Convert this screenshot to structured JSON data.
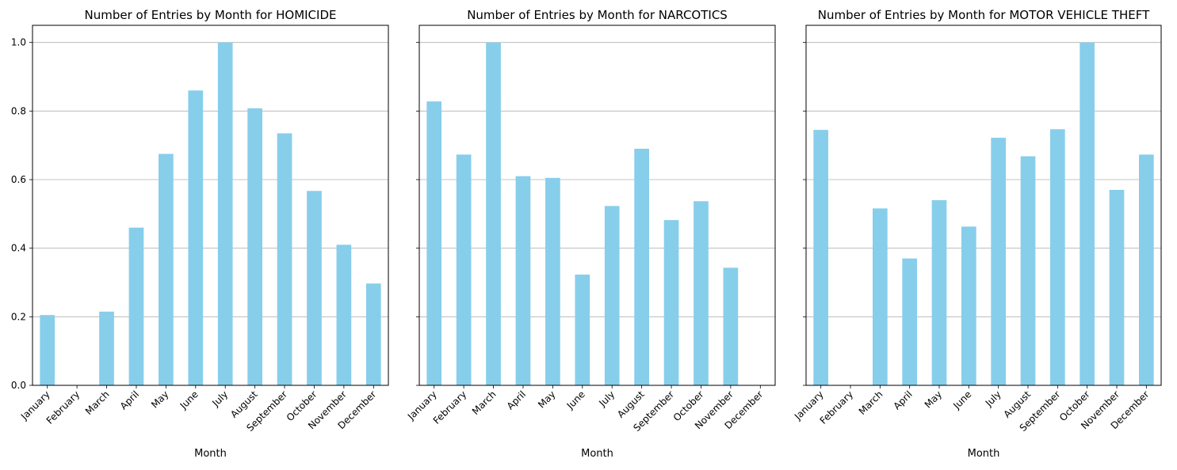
{
  "chart_data": [
    {
      "type": "bar",
      "title": "Number of Entries by Month for HOMICIDE",
      "xlabel": "Month",
      "ylabel": "",
      "ylim": [
        0,
        1.05
      ],
      "yticks": [
        "0.0",
        "0.2",
        "0.4",
        "0.6",
        "0.8",
        "1.0"
      ],
      "grid": "y-axis",
      "show_ytick_labels": true,
      "categories": [
        "January",
        "February",
        "March",
        "April",
        "May",
        "June",
        "July",
        "August",
        "September",
        "October",
        "November",
        "December"
      ],
      "values": [
        0.205,
        0,
        0.215,
        0.46,
        0.675,
        0.86,
        1.0,
        0.808,
        0.735,
        0.567,
        0.41,
        0.297
      ]
    },
    {
      "type": "bar",
      "title": "Number of Entries by Month for NARCOTICS",
      "xlabel": "Month",
      "ylabel": "",
      "ylim": [
        0,
        1.05
      ],
      "yticks": [
        "0.0",
        "0.2",
        "0.4",
        "0.6",
        "0.8",
        "1.0"
      ],
      "grid": "y-axis",
      "show_ytick_labels": false,
      "categories": [
        "January",
        "February",
        "March",
        "April",
        "May",
        "June",
        "July",
        "August",
        "September",
        "October",
        "November",
        "December"
      ],
      "values": [
        0.828,
        0.673,
        1.0,
        0.61,
        0.605,
        0.323,
        0.523,
        0.69,
        0.482,
        0.537,
        0.343,
        0
      ]
    },
    {
      "type": "bar",
      "title": "Number of Entries by Month for MOTOR VEHICLE THEFT",
      "xlabel": "Month",
      "ylabel": "",
      "ylim": [
        0,
        1.05
      ],
      "yticks": [
        "0.0",
        "0.2",
        "0.4",
        "0.6",
        "0.8",
        "1.0"
      ],
      "grid": "y-axis",
      "show_ytick_labels": false,
      "categories": [
        "January",
        "February",
        "March",
        "April",
        "May",
        "June",
        "July",
        "August",
        "September",
        "October",
        "November",
        "December"
      ],
      "values": [
        0.745,
        0,
        0.516,
        0.37,
        0.54,
        0.463,
        0.722,
        0.668,
        0.747,
        1.0,
        0.57,
        0.673
      ]
    }
  ],
  "colors": {
    "bar": "#87ceeb",
    "grid": "#b0b0b0",
    "axis": "#000000"
  }
}
